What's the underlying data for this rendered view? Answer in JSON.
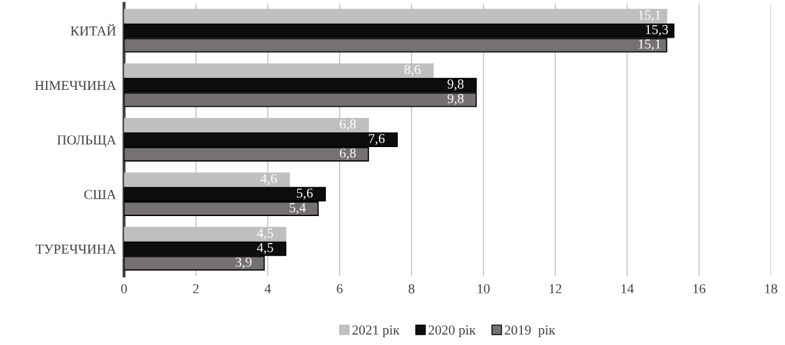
{
  "chart_data": {
    "type": "bar",
    "orientation": "horizontal",
    "categories": [
      "КИТАЙ",
      "НІМЕЧЧИНА",
      "ПОЛЬЩА",
      "США",
      "ТУРЕЧЧИНА"
    ],
    "series": [
      {
        "name": "2021 рік",
        "color": "#bfbfbf",
        "values": [
          15.1,
          8.6,
          6.8,
          4.6,
          4.5
        ],
        "value_labels": [
          "15,1",
          "8,6",
          "6,8",
          "4,6",
          "4,5"
        ]
      },
      {
        "name": "2020 рік",
        "color": "#0d0d0d",
        "values": [
          15.3,
          9.8,
          7.6,
          5.6,
          4.5
        ],
        "value_labels": [
          "15,3",
          "9,8",
          "7,6",
          "5,6",
          "4,5"
        ]
      },
      {
        "name": "2019  рік",
        "color": "#767171",
        "values": [
          15.1,
          9.8,
          6.8,
          5.4,
          3.9
        ],
        "value_labels": [
          "15,1",
          "9,8",
          "6,8",
          "5,4",
          "3,9"
        ]
      }
    ],
    "xlim": [
      0,
      18
    ],
    "xticks": [
      0,
      2,
      4,
      6,
      8,
      10,
      12,
      14,
      16,
      18
    ],
    "grid": "x",
    "legend": "bottom"
  }
}
